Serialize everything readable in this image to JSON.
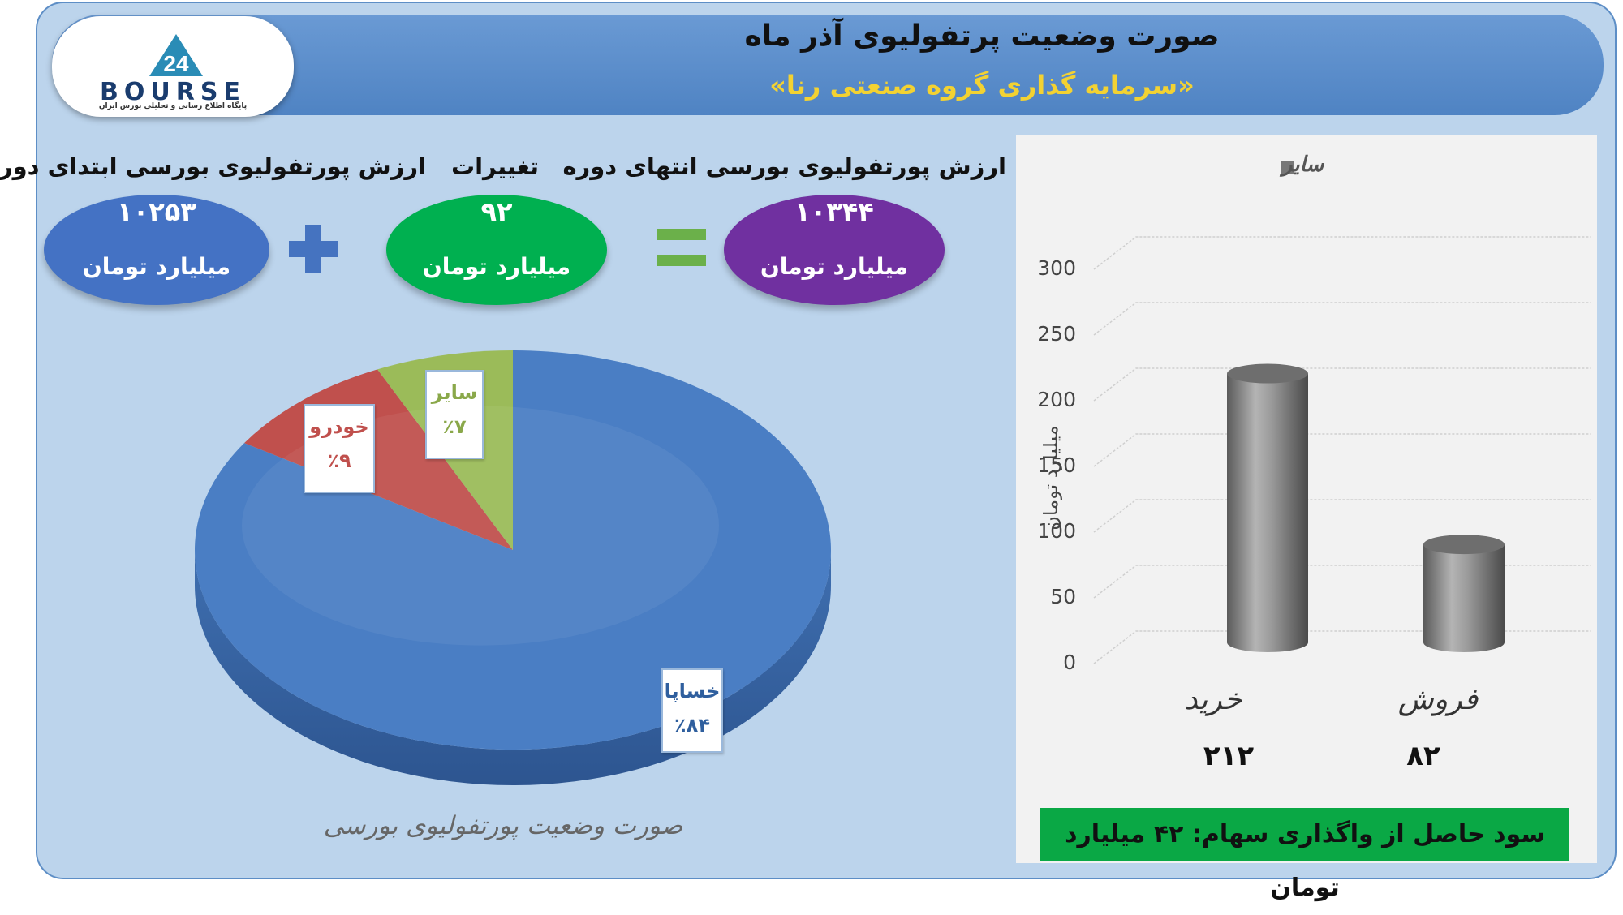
{
  "header": {
    "title": "صورت وضعیت پرتفولیوی آذر ماه",
    "subtitle": "«سرمایه گذاری گروه صنعتی رنا»",
    "logo_text": "BOURSE",
    "logo_number": "24",
    "logo_tagline": "پایگاه اطلاع رسانی و تحلیلی بورس ایران"
  },
  "summary": {
    "start_label": "ارزش پورتفولیوی بورسی ابتدای دوره",
    "start_value": "۱۰۲۵۳",
    "changes_label": "تغییرات",
    "changes_value": "۹۲",
    "end_label": "ارزش پورتفولیوی بورسی انتهای دوره",
    "end_value": "۱۰۳۴۴",
    "unit": "میلیارد تومان",
    "plus_symbol": "+",
    "equals_symbol": "=",
    "colors": {
      "start": "#4472c4",
      "changes": "#00b050",
      "end": "#7030a0"
    }
  },
  "chart_data": [
    {
      "type": "pie",
      "title": "صورت وضعیت پورتفولیوی بورسی",
      "categories": [
        "خساپا",
        "خودرو",
        "سایر"
      ],
      "values": [
        84,
        9,
        7
      ],
      "labels": [
        "٪۸۴",
        "٪۹",
        "٪۷"
      ],
      "colors": [
        "#4a7ec4",
        "#c0504d",
        "#9bbb59"
      ],
      "label_colors": [
        "#2f5f9e",
        "#c0504d",
        "#8aa84a"
      ],
      "legend": "none"
    },
    {
      "type": "bar",
      "categories": [
        "خرید",
        "فروش"
      ],
      "values": [
        212,
        82
      ],
      "data_labels": [
        "۲۱۲",
        "۸۲"
      ],
      "series": [
        {
          "name": "سایر",
          "values": [
            212,
            82
          ]
        }
      ],
      "ylabel": "میلیارد تومان",
      "ylim": [
        0,
        300
      ],
      "yticks": [
        0,
        50,
        100,
        150,
        200,
        250,
        300
      ],
      "grid": true,
      "legend": "top",
      "bar_color": "#808080"
    }
  ],
  "footer": {
    "profit_text": "سود حاصل از واگذاری سهام: ۴۲ میلیارد تومان",
    "profit_color": "#00b050"
  }
}
